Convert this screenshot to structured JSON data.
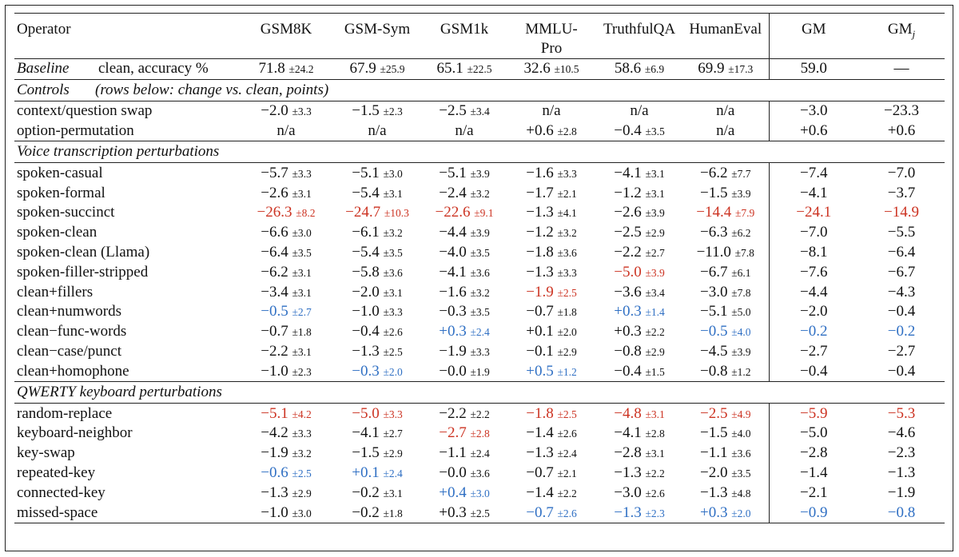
{
  "headers": [
    "Operator",
    "GSM8K",
    "GSM-Sym",
    "GSM1k",
    "MMLU-\nPro",
    "TruthfulQA",
    "HumanEval",
    "GM",
    "GM",
    "j"
  ],
  "baseline": {
    "label": "Baseline",
    "sublabel": "clean, accuracy %",
    "cells": [
      {
        "v": "71.8",
        "sd": "±24.2"
      },
      {
        "v": "67.9",
        "sd": "±25.9"
      },
      {
        "v": "65.1",
        "sd": "±22.5"
      },
      {
        "v": "32.6",
        "sd": "±10.5"
      },
      {
        "v": "58.6",
        "sd": "±6.9"
      },
      {
        "v": "69.9",
        "sd": "±17.3"
      }
    ],
    "gm": "59.0",
    "gmj": "—"
  },
  "controls": {
    "label": "Controls",
    "note": "(rows below: change vs. clean, points)",
    "rows": [
      {
        "name": "context/question swap",
        "cells": [
          {
            "v": "−2.0",
            "sd": "±3.3"
          },
          {
            "v": "−1.5",
            "sd": "±2.3"
          },
          {
            "v": "−2.5",
            "sd": "±3.4"
          },
          {
            "v": "n/a",
            "sd": ""
          },
          {
            "v": "n/a",
            "sd": ""
          },
          {
            "v": "n/a",
            "sd": ""
          }
        ],
        "gm": {
          "v": "−3.0"
        },
        "gmj": {
          "v": "−23.3"
        }
      },
      {
        "name": "option-permutation",
        "cells": [
          {
            "v": "n/a",
            "sd": ""
          },
          {
            "v": "n/a",
            "sd": ""
          },
          {
            "v": "n/a",
            "sd": ""
          },
          {
            "v": "+0.6",
            "sd": "±2.8"
          },
          {
            "v": "−0.4",
            "sd": "±3.5"
          },
          {
            "v": "n/a",
            "sd": ""
          }
        ],
        "gm": {
          "v": "+0.6"
        },
        "gmj": {
          "v": "+0.6"
        }
      }
    ]
  },
  "voice": {
    "title": "Voice transcription perturbations",
    "rows": [
      {
        "name": "spoken-casual",
        "cells": [
          {
            "v": "−5.7",
            "sd": "±3.3"
          },
          {
            "v": "−5.1",
            "sd": "±3.0"
          },
          {
            "v": "−5.1",
            "sd": "±3.9"
          },
          {
            "v": "−1.6",
            "sd": "±3.3"
          },
          {
            "v": "−4.1",
            "sd": "±3.1"
          },
          {
            "v": "−6.2",
            "sd": "±7.7"
          }
        ],
        "gm": {
          "v": "−7.4"
        },
        "gmj": {
          "v": "−7.0"
        }
      },
      {
        "name": "spoken-formal",
        "cells": [
          {
            "v": "−2.6",
            "sd": "±3.1"
          },
          {
            "v": "−5.4",
            "sd": "±3.1"
          },
          {
            "v": "−2.4",
            "sd": "±3.2"
          },
          {
            "v": "−1.7",
            "sd": "±2.1"
          },
          {
            "v": "−1.2",
            "sd": "±3.1"
          },
          {
            "v": "−1.5",
            "sd": "±3.9"
          }
        ],
        "gm": {
          "v": "−4.1"
        },
        "gmj": {
          "v": "−3.7"
        }
      },
      {
        "name": "spoken-succinct",
        "cells": [
          {
            "v": "−26.3",
            "sd": "±8.2",
            "c": "red"
          },
          {
            "v": "−24.7",
            "sd": "±10.3",
            "c": "red"
          },
          {
            "v": "−22.6",
            "sd": "±9.1",
            "c": "red"
          },
          {
            "v": "−1.3",
            "sd": "±4.1"
          },
          {
            "v": "−2.6",
            "sd": "±3.9"
          },
          {
            "v": "−14.4",
            "sd": "±7.9",
            "c": "red"
          }
        ],
        "gm": {
          "v": "−24.1",
          "c": "red"
        },
        "gmj": {
          "v": "−14.9",
          "c": "red"
        }
      },
      {
        "name": "spoken-clean",
        "cells": [
          {
            "v": "−6.6",
            "sd": "±3.0"
          },
          {
            "v": "−6.1",
            "sd": "±3.2"
          },
          {
            "v": "−4.4",
            "sd": "±3.9"
          },
          {
            "v": "−1.2",
            "sd": "±3.2"
          },
          {
            "v": "−2.5",
            "sd": "±2.9"
          },
          {
            "v": "−6.3",
            "sd": "±6.2"
          }
        ],
        "gm": {
          "v": "−7.0"
        },
        "gmj": {
          "v": "−5.5"
        }
      },
      {
        "name": "spoken-clean (Llama)",
        "cells": [
          {
            "v": "−6.4",
            "sd": "±3.5"
          },
          {
            "v": "−5.4",
            "sd": "±3.5"
          },
          {
            "v": "−4.0",
            "sd": "±3.5"
          },
          {
            "v": "−1.8",
            "sd": "±3.6"
          },
          {
            "v": "−2.2",
            "sd": "±2.7"
          },
          {
            "v": "−11.0",
            "sd": "±7.8"
          }
        ],
        "gm": {
          "v": "−8.1"
        },
        "gmj": {
          "v": "−6.4"
        }
      },
      {
        "name": "spoken-filler-stripped",
        "cells": [
          {
            "v": "−6.2",
            "sd": "±3.1"
          },
          {
            "v": "−5.8",
            "sd": "±3.6"
          },
          {
            "v": "−4.1",
            "sd": "±3.6"
          },
          {
            "v": "−1.3",
            "sd": "±3.3"
          },
          {
            "v": "−5.0",
            "sd": "±3.9",
            "c": "red"
          },
          {
            "v": "−6.7",
            "sd": "±6.1"
          }
        ],
        "gm": {
          "v": "−7.6"
        },
        "gmj": {
          "v": "−6.7"
        }
      },
      {
        "name": "clean+fillers",
        "cells": [
          {
            "v": "−3.4",
            "sd": "±3.1"
          },
          {
            "v": "−2.0",
            "sd": "±3.1"
          },
          {
            "v": "−1.6",
            "sd": "±3.2"
          },
          {
            "v": "−1.9",
            "sd": "±2.5",
            "c": "red"
          },
          {
            "v": "−3.6",
            "sd": "±3.4"
          },
          {
            "v": "−3.0",
            "sd": "±7.8"
          }
        ],
        "gm": {
          "v": "−4.4"
        },
        "gmj": {
          "v": "−4.3"
        }
      },
      {
        "name": "clean+numwords",
        "cells": [
          {
            "v": "−0.5",
            "sd": "±2.7",
            "c": "blue"
          },
          {
            "v": "−1.0",
            "sd": "±3.3"
          },
          {
            "v": "−0.3",
            "sd": "±3.5"
          },
          {
            "v": "−0.7",
            "sd": "±1.8"
          },
          {
            "v": "+0.3",
            "sd": "±1.4",
            "c": "blue"
          },
          {
            "v": "−5.1",
            "sd": "±5.0"
          }
        ],
        "gm": {
          "v": "−2.0"
        },
        "gmj": {
          "v": "−0.4"
        }
      },
      {
        "name": "clean−func-words",
        "cells": [
          {
            "v": "−0.7",
            "sd": "±1.8"
          },
          {
            "v": "−0.4",
            "sd": "±2.6"
          },
          {
            "v": "+0.3",
            "sd": "±2.4",
            "c": "blue"
          },
          {
            "v": "+0.1",
            "sd": "±2.0"
          },
          {
            "v": "+0.3",
            "sd": "±2.2"
          },
          {
            "v": "−0.5",
            "sd": "±4.0",
            "c": "blue"
          }
        ],
        "gm": {
          "v": "−0.2",
          "c": "blue"
        },
        "gmj": {
          "v": "−0.2",
          "c": "blue"
        }
      },
      {
        "name": "clean−case/punct",
        "cells": [
          {
            "v": "−2.2",
            "sd": "±3.1"
          },
          {
            "v": "−1.3",
            "sd": "±2.5"
          },
          {
            "v": "−1.9",
            "sd": "±3.3"
          },
          {
            "v": "−0.1",
            "sd": "±2.9"
          },
          {
            "v": "−0.8",
            "sd": "±2.9"
          },
          {
            "v": "−4.5",
            "sd": "±3.9"
          }
        ],
        "gm": {
          "v": "−2.7"
        },
        "gmj": {
          "v": "−2.7"
        }
      },
      {
        "name": "clean+homophone",
        "cells": [
          {
            "v": "−1.0",
            "sd": "±2.3"
          },
          {
            "v": "−0.3",
            "sd": "±2.0",
            "c": "blue"
          },
          {
            "v": "−0.0",
            "sd": "±1.9"
          },
          {
            "v": "+0.5",
            "sd": "±1.2",
            "c": "blue"
          },
          {
            "v": "−0.4",
            "sd": "±1.5"
          },
          {
            "v": "−0.8",
            "sd": "±1.2"
          }
        ],
        "gm": {
          "v": "−0.4"
        },
        "gmj": {
          "v": "−0.4"
        }
      }
    ]
  },
  "qwerty": {
    "title": "QWERTY keyboard perturbations",
    "rows": [
      {
        "name": "random-replace",
        "cells": [
          {
            "v": "−5.1",
            "sd": "±4.2",
            "c": "red"
          },
          {
            "v": "−5.0",
            "sd": "±3.3",
            "c": "red"
          },
          {
            "v": "−2.2",
            "sd": "±2.2"
          },
          {
            "v": "−1.8",
            "sd": "±2.5",
            "c": "red"
          },
          {
            "v": "−4.8",
            "sd": "±3.1",
            "c": "red"
          },
          {
            "v": "−2.5",
            "sd": "±4.9",
            "c": "red"
          }
        ],
        "gm": {
          "v": "−5.9",
          "c": "red"
        },
        "gmj": {
          "v": "−5.3",
          "c": "red"
        }
      },
      {
        "name": "keyboard-neighbor",
        "cells": [
          {
            "v": "−4.2",
            "sd": "±3.3"
          },
          {
            "v": "−4.1",
            "sd": "±2.7"
          },
          {
            "v": "−2.7",
            "sd": "±2.8",
            "c": "red"
          },
          {
            "v": "−1.4",
            "sd": "±2.6"
          },
          {
            "v": "−4.1",
            "sd": "±2.8"
          },
          {
            "v": "−1.5",
            "sd": "±4.0"
          }
        ],
        "gm": {
          "v": "−5.0"
        },
        "gmj": {
          "v": "−4.6"
        }
      },
      {
        "name": "key-swap",
        "cells": [
          {
            "v": "−1.9",
            "sd": "±3.2"
          },
          {
            "v": "−1.5",
            "sd": "±2.9"
          },
          {
            "v": "−1.1",
            "sd": "±2.4"
          },
          {
            "v": "−1.3",
            "sd": "±2.4"
          },
          {
            "v": "−2.8",
            "sd": "±3.1"
          },
          {
            "v": "−1.1",
            "sd": "±3.6"
          }
        ],
        "gm": {
          "v": "−2.8"
        },
        "gmj": {
          "v": "−2.3"
        }
      },
      {
        "name": "repeated-key",
        "cells": [
          {
            "v": "−0.6",
            "sd": "±2.5",
            "c": "blue"
          },
          {
            "v": "+0.1",
            "sd": "±2.4",
            "c": "blue"
          },
          {
            "v": "−0.0",
            "sd": "±3.6"
          },
          {
            "v": "−0.7",
            "sd": "±2.1"
          },
          {
            "v": "−1.3",
            "sd": "±2.2"
          },
          {
            "v": "−2.0",
            "sd": "±3.5"
          }
        ],
        "gm": {
          "v": "−1.4"
        },
        "gmj": {
          "v": "−1.3"
        }
      },
      {
        "name": "connected-key",
        "cells": [
          {
            "v": "−1.3",
            "sd": "±2.9"
          },
          {
            "v": "−0.2",
            "sd": "±3.1"
          },
          {
            "v": "+0.4",
            "sd": "±3.0",
            "c": "blue"
          },
          {
            "v": "−1.4",
            "sd": "±2.2"
          },
          {
            "v": "−3.0",
            "sd": "±2.6"
          },
          {
            "v": "−1.3",
            "sd": "±4.8"
          }
        ],
        "gm": {
          "v": "−2.1"
        },
        "gmj": {
          "v": "−1.9"
        }
      },
      {
        "name": "missed-space",
        "cells": [
          {
            "v": "−1.0",
            "sd": "±3.0"
          },
          {
            "v": "−0.2",
            "sd": "±1.8"
          },
          {
            "v": "+0.3",
            "sd": "±2.5"
          },
          {
            "v": "−0.7",
            "sd": "±2.6",
            "c": "blue"
          },
          {
            "v": "−1.3",
            "sd": "±2.3",
            "c": "blue"
          },
          {
            "v": "+0.3",
            "sd": "±2.0",
            "c": "blue"
          }
        ],
        "gm": {
          "v": "−0.9",
          "c": "blue"
        },
        "gmj": {
          "v": "−0.8",
          "c": "blue"
        }
      }
    ]
  },
  "colors": {
    "red": "#cc3322",
    "blue": "#2f6fc3",
    "rule": "#222222"
  }
}
